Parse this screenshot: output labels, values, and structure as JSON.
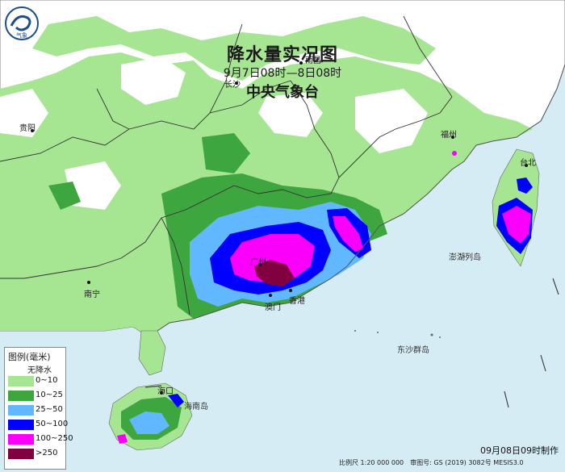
{
  "title": "降水量实况图",
  "time_range": "9月7日08时—8日08时",
  "agency": "中央气象台",
  "logo_text": "气象",
  "places": {
    "nanchang": "南昌",
    "changsha": "长沙",
    "fuzhou": "福州",
    "guiyang": "贵阳",
    "taipei": "台北",
    "nanning": "南宁",
    "guangzhou": "广州",
    "hongkong": "香港",
    "macau": "澳门",
    "haikou": "海口",
    "hainan": "海南岛",
    "penghu": "澎湖列岛",
    "dongsha": "东沙群岛"
  },
  "legend": {
    "title": "图例(毫米)",
    "no_rain": "无降水",
    "items": [
      {
        "label": "0~10",
        "color": "#a6e592"
      },
      {
        "label": "10~25",
        "color": "#3ea63f"
      },
      {
        "label": "25~50",
        "color": "#62b8ff"
      },
      {
        "label": "50~100",
        "color": "#0000fe"
      },
      {
        "label": "100~250",
        "color": "#fa00fa"
      },
      {
        "label": ">250",
        "color": "#800040"
      }
    ]
  },
  "footer": {
    "made": "09月08日09时制作",
    "scale_info": "比例尺 1:20 000 000　审图号: GS (2019) 3082号 MESIS3.0"
  },
  "colors": {
    "sea": "#d6ecf4",
    "land": "#ffffff",
    "light_green": "#a6e592",
    "green": "#3ea63f",
    "light_blue": "#62b8ff",
    "blue": "#0000fe",
    "magenta": "#fa00fa",
    "maroon": "#800040"
  }
}
